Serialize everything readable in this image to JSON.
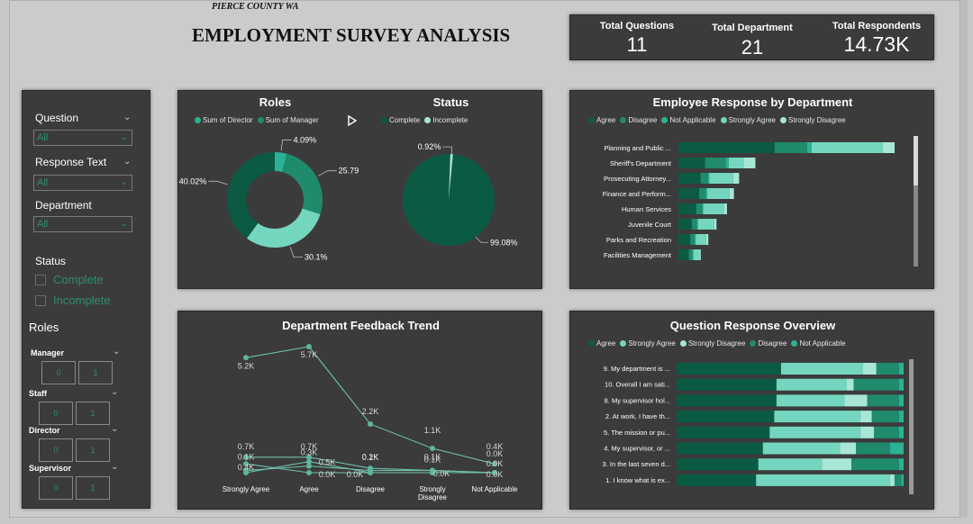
{
  "header": {
    "subtitle": "PIERCE COUNTY WA",
    "title": "EMPLOYMENT SURVEY ANALYSIS"
  },
  "kpis": [
    {
      "label": "Total Questions",
      "value": "11"
    },
    {
      "label": "Total Department",
      "value": "21"
    },
    {
      "label": "Total Respondents",
      "value": "14.73K"
    }
  ],
  "slicers": {
    "question": {
      "label": "Question",
      "value": "All"
    },
    "response_text": {
      "label": "Response Text",
      "value": "All"
    },
    "department": {
      "label": "Department",
      "value": "All"
    },
    "status": {
      "label": "Status",
      "options": [
        "Complete",
        "Incomplete"
      ]
    },
    "roles": {
      "label": "Roles",
      "groups": [
        {
          "name": "Manager",
          "values": [
            "0",
            "1"
          ]
        },
        {
          "name": "Staff",
          "values": [
            "0",
            "1"
          ]
        },
        {
          "name": "Director",
          "values": [
            "0",
            "1"
          ]
        },
        {
          "name": "Supervisor",
          "values": [
            "0",
            "1"
          ]
        }
      ]
    }
  },
  "colors": {
    "dark_green": "#0b5a44",
    "mid_green": "#1f8a6c",
    "teal": "#2bb193",
    "light_teal": "#74d6bf",
    "pale_teal": "#a8e6d6",
    "panel": "#3b3b3b"
  },
  "roles_chart": {
    "title": "Roles",
    "legend": [
      "Sum of Director",
      "Sum of Manager"
    ],
    "labels": [
      "4.09%",
      "25.79%",
      "30.1%",
      "40.02%"
    ]
  },
  "status_chart": {
    "title": "Status",
    "legend": [
      "Complete",
      "Incomplete"
    ],
    "labels": [
      "0.92%",
      "99.08%"
    ]
  },
  "emp_chart": {
    "title": "Employee Response by Department",
    "legend": [
      "Agree",
      "Disagree",
      "Not Applicable",
      "Strongly Agree",
      "Strongly Disagree"
    ]
  },
  "trend_chart": {
    "title": "Department Feedback Trend"
  },
  "qr_chart": {
    "title": "Question Response Overview",
    "legend": [
      "Agree",
      "Strongly Agree",
      "Strongly Disagree",
      "Disagree",
      "Not Applicable"
    ]
  },
  "chart_data": [
    {
      "type": "pie",
      "title": "Roles",
      "donut": true,
      "legend": [
        "Sum of Director",
        "Sum of Manager"
      ],
      "slices": [
        {
          "label": "4.09%",
          "value": 4.09,
          "color": "#2bb193"
        },
        {
          "label": "25.79%",
          "value": 25.79,
          "color": "#1f8a6c"
        },
        {
          "label": "30.1%",
          "value": 30.1,
          "color": "#74d6bf"
        },
        {
          "label": "40.02%",
          "value": 40.02,
          "color": "#0b5a44"
        }
      ]
    },
    {
      "type": "pie",
      "title": "Status",
      "legend": [
        "Complete",
        "Incomplete"
      ],
      "slices": [
        {
          "label": "99.08%",
          "value": 99.08,
          "color": "#0b5a44"
        },
        {
          "label": "0.92%",
          "value": 0.92,
          "color": "#a8e6d6"
        }
      ]
    },
    {
      "type": "bar",
      "orientation": "horizontal",
      "stacked": true,
      "title": "Employee Response by Department",
      "categories": [
        "Planning and Public ...",
        "Sheriff's Department",
        "Prosecuting Attorney...",
        "Finance and Perform...",
        "Human Services",
        "Juvenile Court",
        "Parks and Recreation",
        "Facilities Management"
      ],
      "series": [
        {
          "name": "Agree",
          "color": "#0b5a44",
          "values": [
            650,
            180,
            150,
            140,
            120,
            90,
            80,
            70
          ]
        },
        {
          "name": "Disagree",
          "color": "#1f8a6c",
          "values": [
            220,
            140,
            50,
            45,
            40,
            35,
            30,
            25
          ]
        },
        {
          "name": "Not Applicable",
          "color": "#2bb193",
          "values": [
            30,
            20,
            10,
            10,
            8,
            7,
            7,
            6
          ]
        },
        {
          "name": "Strongly Agree",
          "color": "#74d6bf",
          "values": [
            480,
            100,
            160,
            150,
            140,
            110,
            70,
            40
          ]
        },
        {
          "name": "Strongly Disagree",
          "color": "#a8e6d6",
          "values": [
            80,
            80,
            40,
            30,
            20,
            15,
            15,
            10
          ]
        }
      ]
    },
    {
      "type": "line",
      "title": "Department Feedback Trend",
      "categories": [
        "Strongly Agree",
        "Agree",
        "Disagree",
        "Strongly Disagree",
        "Not Applicable"
      ],
      "series": [
        {
          "values": [
            5.2,
            5.7,
            2.2,
            1.1,
            0.4
          ],
          "labels": [
            "5.2K",
            "5.7K",
            "2.2K",
            "1.1K",
            "0.4K"
          ]
        },
        {
          "values": [
            0.7,
            0.7,
            0.2,
            0.1,
            0.0
          ],
          "labels": [
            "0.7K",
            "0.7K",
            "0.2K",
            "0.1K",
            "0.0K"
          ]
        },
        {
          "values": [
            0.1,
            0.3,
            0.1,
            0.1,
            0.0
          ],
          "labels": [
            "0.1K",
            "0.3K",
            "0.1K",
            "0.1K",
            "0.0K"
          ]
        },
        {
          "values": [
            0.0,
            0.5,
            0.0,
            0.0,
            0.0
          ],
          "labels": [
            "",
            "0.5K",
            "",
            "0.0K",
            ""
          ]
        },
        {
          "values": [
            0.4,
            0.0,
            0.0,
            0.0,
            0.0
          ],
          "labels": [
            "0.4K",
            "0.0K",
            "0.0K",
            "",
            "0.0K"
          ]
        }
      ]
    },
    {
      "type": "bar",
      "orientation": "horizontal",
      "stacked": true,
      "percent": true,
      "title": "Question Response Overview",
      "categories": [
        "9. My department is ...",
        "10. Overall I am sati...",
        "8. My supervisor hol...",
        "2. At work, I have th...",
        "5. The mission or pu...",
        "4. My supervisor, or ...",
        "3. In the last seven d...",
        "1. I know what is ex..."
      ],
      "series": [
        {
          "name": "Agree",
          "color": "#0b5a44",
          "values": [
            46,
            44,
            44,
            43,
            41,
            38,
            36,
            35
          ]
        },
        {
          "name": "Strongly Agree",
          "color": "#74d6bf",
          "values": [
            36,
            31,
            30,
            38,
            40,
            34,
            28,
            59
          ]
        },
        {
          "name": "Strongly Disagree",
          "color": "#a8e6d6",
          "values": [
            6,
            3,
            10,
            5,
            6,
            7,
            13,
            2
          ]
        },
        {
          "name": "Disagree",
          "color": "#1f8a6c",
          "values": [
            10,
            20,
            14,
            12,
            11,
            15,
            21,
            3
          ]
        },
        {
          "name": "Not Applicable",
          "color": "#2bb193",
          "values": [
            2,
            2,
            2,
            2,
            2,
            6,
            2,
            1
          ]
        }
      ]
    }
  ]
}
